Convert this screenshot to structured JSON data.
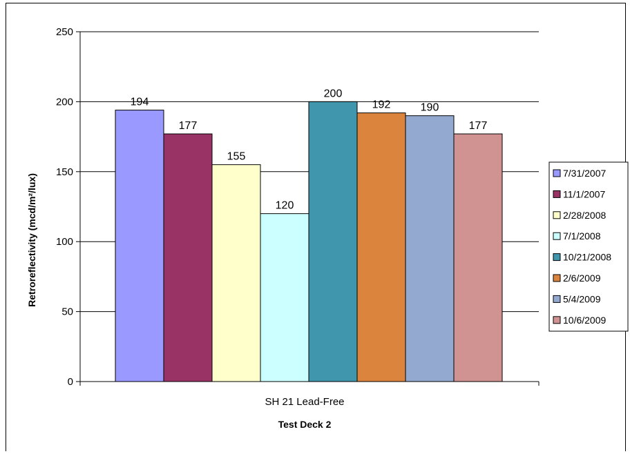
{
  "chart_data": {
    "type": "bar",
    "categories": [
      "SH 21 Lead-Free"
    ],
    "xlabel": "Test Deck 2",
    "ylabel": "Retroreflectivity (mcd/m²/lux)",
    "ylim": [
      0,
      250
    ],
    "yticks": [
      0,
      50,
      100,
      150,
      200,
      250
    ],
    "grid": true,
    "legend_position": "right",
    "series": [
      {
        "name": "7/31/2007",
        "values": [
          194
        ],
        "color": "#9999ff"
      },
      {
        "name": "11/1/2007",
        "values": [
          177
        ],
        "color": "#993366"
      },
      {
        "name": "2/28/2008",
        "values": [
          155
        ],
        "color": "#ffffcc"
      },
      {
        "name": "7/1/2008",
        "values": [
          120
        ],
        "color": "#ccffff"
      },
      {
        "name": "10/21/2008",
        "values": [
          200
        ],
        "color": "#4096ad"
      },
      {
        "name": "2/6/2009",
        "values": [
          192
        ],
        "color": "#db843d"
      },
      {
        "name": "5/4/2009",
        "values": [
          190
        ],
        "color": "#93a9cf"
      },
      {
        "name": "10/6/2009",
        "values": [
          177
        ],
        "color": "#d19392"
      }
    ]
  }
}
